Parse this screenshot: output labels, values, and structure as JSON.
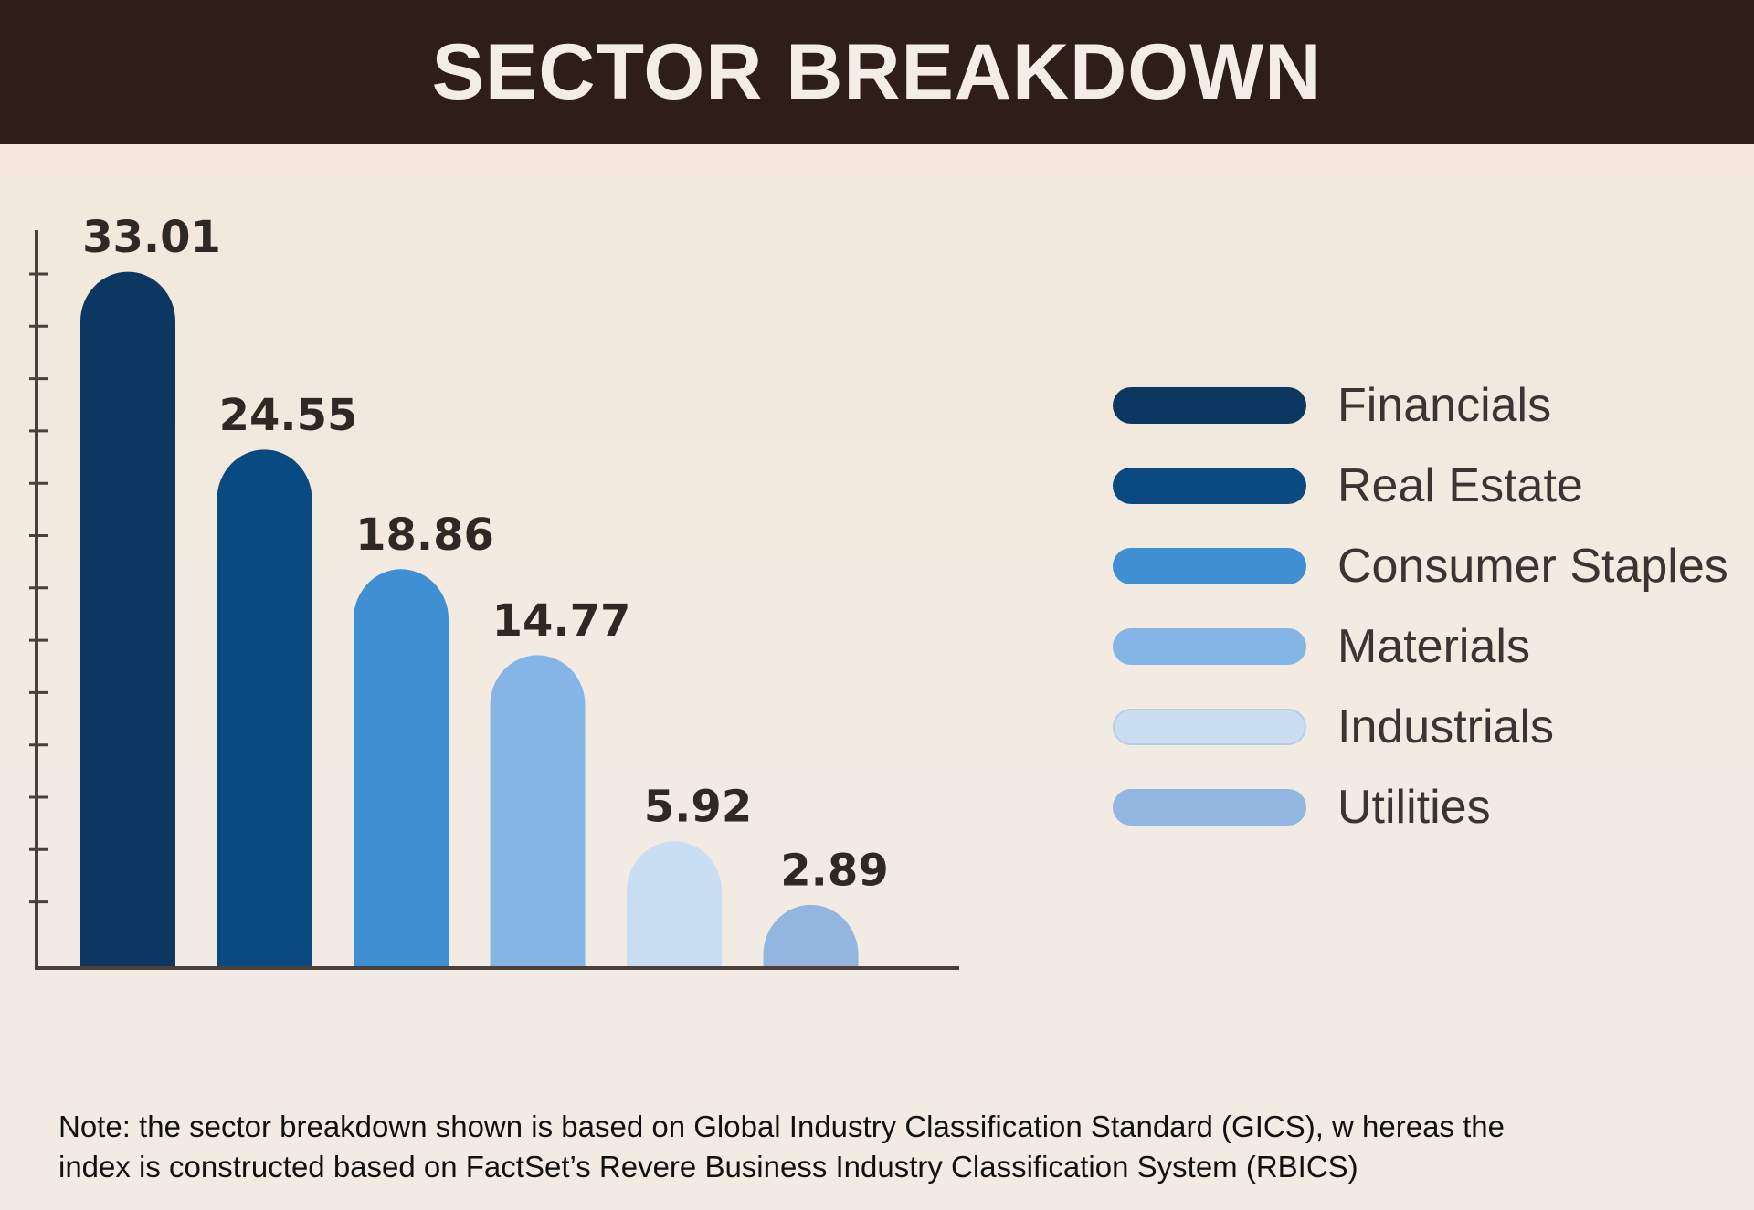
{
  "header": {
    "title": "SECTOR BREAKDOWN"
  },
  "chart_data": {
    "type": "bar",
    "title": "SECTOR BREAKDOWN",
    "categories": [
      "Financials",
      "Real Estate",
      "Consumer Staples",
      "Materials",
      "Industrials",
      "Utilities"
    ],
    "values": [
      33.01,
      24.55,
      18.86,
      14.77,
      5.92,
      2.89
    ],
    "value_labels": [
      "33.01",
      "24.55",
      "18.86",
      "14.77",
      "5.92",
      "2.89"
    ],
    "colors": [
      "#0c3760",
      "#0b4a80",
      "#3e90d2",
      "#84b5e6",
      "#c9def3",
      "#92b6e0"
    ],
    "ylim": [
      0,
      35
    ],
    "legend_position": "right",
    "xlabel": "",
    "ylabel": ""
  },
  "legend": {
    "items": [
      {
        "label": "Financials",
        "color": "#0c3760"
      },
      {
        "label": "Real Estate",
        "color": "#0b4a80"
      },
      {
        "label": "Consumer Staples",
        "color": "#3e90d2"
      },
      {
        "label": "Materials",
        "color": "#84b5e6"
      },
      {
        "label": "Industrials",
        "color": "#c9def3"
      },
      {
        "label": "Utilities",
        "color": "#92b6e0"
      }
    ]
  },
  "note": {
    "line1": "Note:  the sector breakdown shown is based on Global Industry Classification Standard (GICS), w hereas the",
    "line2": "index is constructed based on FactSet’s Revere Business Industry Classification System (RBICS)"
  },
  "colors": {
    "header_bg": "#2e1e17",
    "header_text": "#f4ede5",
    "axis": "#4a3f3a"
  }
}
